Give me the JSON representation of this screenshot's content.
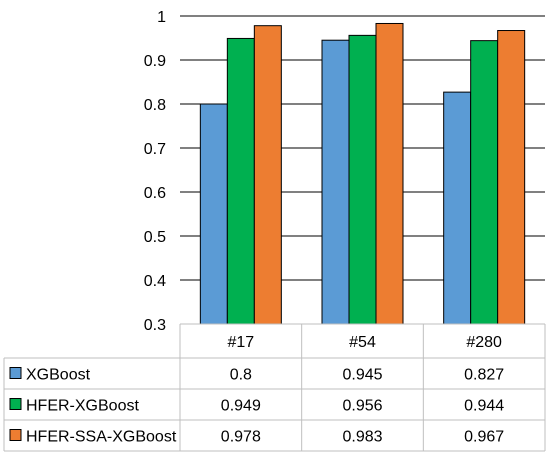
{
  "chart_data": {
    "type": "bar",
    "categories": [
      "#17",
      "#54",
      "#280"
    ],
    "series": [
      {
        "name": "XGBoost",
        "values": [
          0.8,
          0.945,
          0.827
        ],
        "color": "#5B9BD5"
      },
      {
        "name": "HFER-XGBoost",
        "values": [
          0.949,
          0.956,
          0.944
        ],
        "color": "#00B050"
      },
      {
        "name": "HFER-SSA-XGBoost",
        "values": [
          0.978,
          0.983,
          0.967
        ],
        "color": "#ED7D31"
      }
    ],
    "table_values": [
      [
        "0.8",
        "0.945",
        "0.827"
      ],
      [
        "0.949",
        "0.956",
        "0.944"
      ],
      [
        "0.978",
        "0.983",
        "0.967"
      ]
    ],
    "yticks": [
      "0.3",
      "0.4",
      "0.5",
      "0.6",
      "0.7",
      "0.8",
      "0.9",
      "1"
    ],
    "ylim": [
      0.3,
      1
    ],
    "grid": true,
    "legend": "data-table"
  }
}
